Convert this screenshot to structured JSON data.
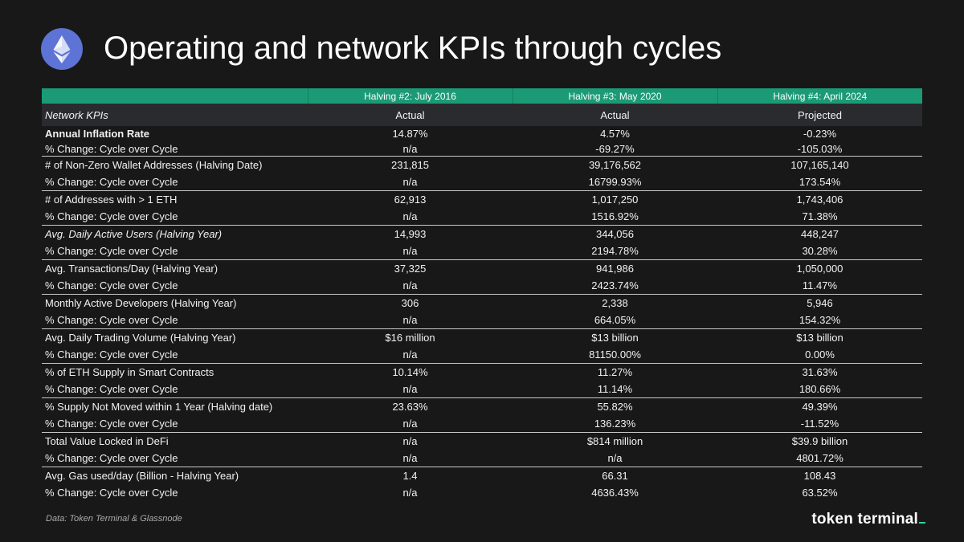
{
  "title": "Operating and network KPIs through cycles",
  "header": {
    "halvings": [
      "Halving #2: July 2016",
      "Halving #3: May 2020",
      "Halving #4: April 2024"
    ],
    "kpi_label": "Network KPIs",
    "statuses": [
      "Actual",
      "Actual",
      "Projected"
    ]
  },
  "change_label": "% Change: Cycle over Cycle",
  "kpis": [
    {
      "name": "Annual Inflation Rate",
      "values": [
        "14.87%",
        "4.57%",
        "-0.23%"
      ],
      "changes": [
        "n/a",
        "-69.27%",
        "-105.03%"
      ]
    },
    {
      "name": "# of Non-Zero Wallet Addresses (Halving Date)",
      "values": [
        "231,815",
        "39,176,562",
        "107,165,140"
      ],
      "changes": [
        "n/a",
        "16799.93%",
        "173.54%"
      ]
    },
    {
      "name": "# of Addresses with > 1 ETH",
      "values": [
        "62,913",
        "1,017,250",
        "1,743,406"
      ],
      "changes": [
        "n/a",
        "1516.92%",
        "71.38%"
      ]
    },
    {
      "name": "Avg. Daily Active Users (Halving Year)",
      "values": [
        "14,993",
        "344,056",
        "448,247"
      ],
      "changes": [
        "n/a",
        "2194.78%",
        "30.28%"
      ]
    },
    {
      "name": "Avg. Transactions/Day (Halving Year)",
      "values": [
        "37,325",
        "941,986",
        "1,050,000"
      ],
      "changes": [
        "n/a",
        "2423.74%",
        "11.47%"
      ]
    },
    {
      "name": "Monthly Active Developers (Halving Year)",
      "values": [
        "306",
        "2,338",
        "5,946"
      ],
      "changes": [
        "n/a",
        "664.05%",
        "154.32%"
      ]
    },
    {
      "name": "Avg. Daily Trading Volume (Halving Year)",
      "values": [
        "$16 million",
        "$13 billion",
        "$13 billion"
      ],
      "changes": [
        "n/a",
        "81150.00%",
        "0.00%"
      ]
    },
    {
      "name": "% of ETH Supply in Smart Contracts",
      "values": [
        "10.14%",
        "11.27%",
        "31.63%"
      ],
      "changes": [
        "n/a",
        "11.14%",
        "180.66%"
      ]
    },
    {
      "name": "% Supply Not Moved within 1 Year (Halving date)",
      "values": [
        "23.63%",
        "55.82%",
        "49.39%"
      ],
      "changes": [
        "n/a",
        "136.23%",
        "-11.52%"
      ]
    },
    {
      "name": "Total Value Locked in DeFi",
      "values": [
        "n/a",
        "$814 million",
        "$39.9 billion"
      ],
      "changes": [
        "n/a",
        "n/a",
        "4801.72%"
      ]
    },
    {
      "name": "Avg. Gas used/day (Billion - Halving Year)",
      "values": [
        "1.4",
        "66.31",
        "108.43"
      ],
      "changes": [
        "n/a",
        "4636.43%",
        "63.52%"
      ]
    }
  ],
  "footer": {
    "source": "Data: Token Terminal & Glassnode",
    "brand": "token terminal"
  },
  "colors": {
    "background": "#181818",
    "header_green": "#1b9a76",
    "logo_blue": "#5d73d6",
    "brand_accent": "#2ed39b"
  }
}
